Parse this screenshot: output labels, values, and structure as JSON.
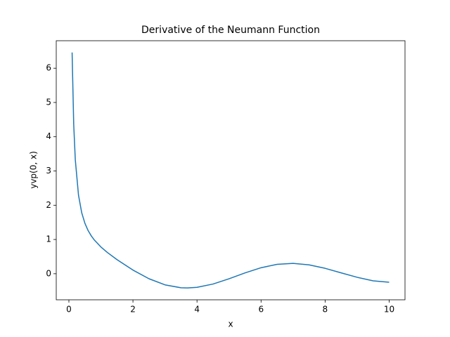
{
  "chart_data": {
    "type": "line",
    "title": "Derivative of the Neumann Function",
    "x_label": "x",
    "y_label": "yvp(0, x)",
    "x": [
      0.1,
      0.15,
      0.2,
      0.3,
      0.4,
      0.5,
      0.6,
      0.7,
      0.8,
      1.0,
      1.2,
      1.5,
      2.0,
      2.5,
      3.0,
      3.5,
      3.7,
      4.0,
      4.5,
      5.0,
      5.5,
      6.0,
      6.5,
      7.0,
      7.5,
      8.0,
      8.5,
      9.0,
      9.5,
      10.0
    ],
    "series": [
      {
        "name": "yvp(0, x)",
        "color": "#1f77b4",
        "values": [
          6.459,
          4.364,
          3.324,
          2.293,
          1.781,
          1.472,
          1.26,
          1.103,
          0.978,
          0.781,
          0.621,
          0.412,
          0.107,
          -0.146,
          -0.325,
          -0.41,
          -0.416,
          -0.398,
          -0.301,
          -0.148,
          0.024,
          0.175,
          0.274,
          0.303,
          0.259,
          0.158,
          0.026,
          -0.104,
          -0.207,
          -0.249
        ]
      }
    ],
    "xlim": [
      -0.395,
      10.495
    ],
    "ylim": [
      -0.761,
      6.803
    ],
    "xticks": [
      0,
      2,
      4,
      6,
      8,
      10
    ],
    "yticks": [
      0,
      1,
      2,
      3,
      4,
      5,
      6
    ]
  }
}
